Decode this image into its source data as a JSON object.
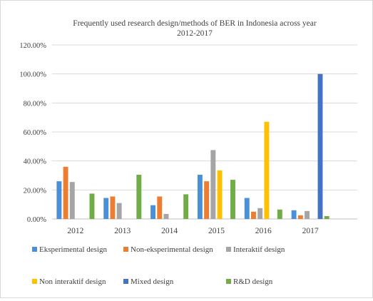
{
  "chart_data": {
    "type": "bar",
    "title_line1": "Frequently used research design/methods of BER in Indonesia across year",
    "title_line2": "2012-2017",
    "xlabel": "",
    "ylabel": "",
    "ylim": [
      0,
      120
    ],
    "y_ticks": [
      "0.00%",
      "20.00%",
      "40.00%",
      "60.00%",
      "80.00%",
      "100.00%",
      "120.00%"
    ],
    "grid": true,
    "legend_position": "bottom",
    "categories": [
      "2012",
      "2013",
      "2014",
      "2015",
      "2016",
      "2017"
    ],
    "series": [
      {
        "name": "Eksperimental design",
        "color": "#4A90D9",
        "values": [
          26,
          14.5,
          9.5,
          30.5,
          14.5,
          6
        ]
      },
      {
        "name": "Non-eksperimental design",
        "color": "#ED7D31",
        "values": [
          36,
          15.5,
          15.5,
          26,
          5,
          2.5
        ]
      },
      {
        "name": "Interaktif design",
        "color": "#A5A5A5",
        "values": [
          25.5,
          11,
          3.5,
          47.5,
          7.5,
          5.5
        ]
      },
      {
        "name": "Non interaktif design",
        "color": "#FFC000",
        "values": [
          0,
          0,
          0,
          33.5,
          67,
          0
        ]
      },
      {
        "name": "Mixed design",
        "color": "#4472C4",
        "values": [
          0,
          0,
          0,
          0,
          0,
          100
        ]
      },
      {
        "name": "R&D design",
        "color": "#70AD47",
        "values": [
          17.5,
          30.5,
          17,
          27,
          6.5,
          2
        ]
      }
    ]
  }
}
